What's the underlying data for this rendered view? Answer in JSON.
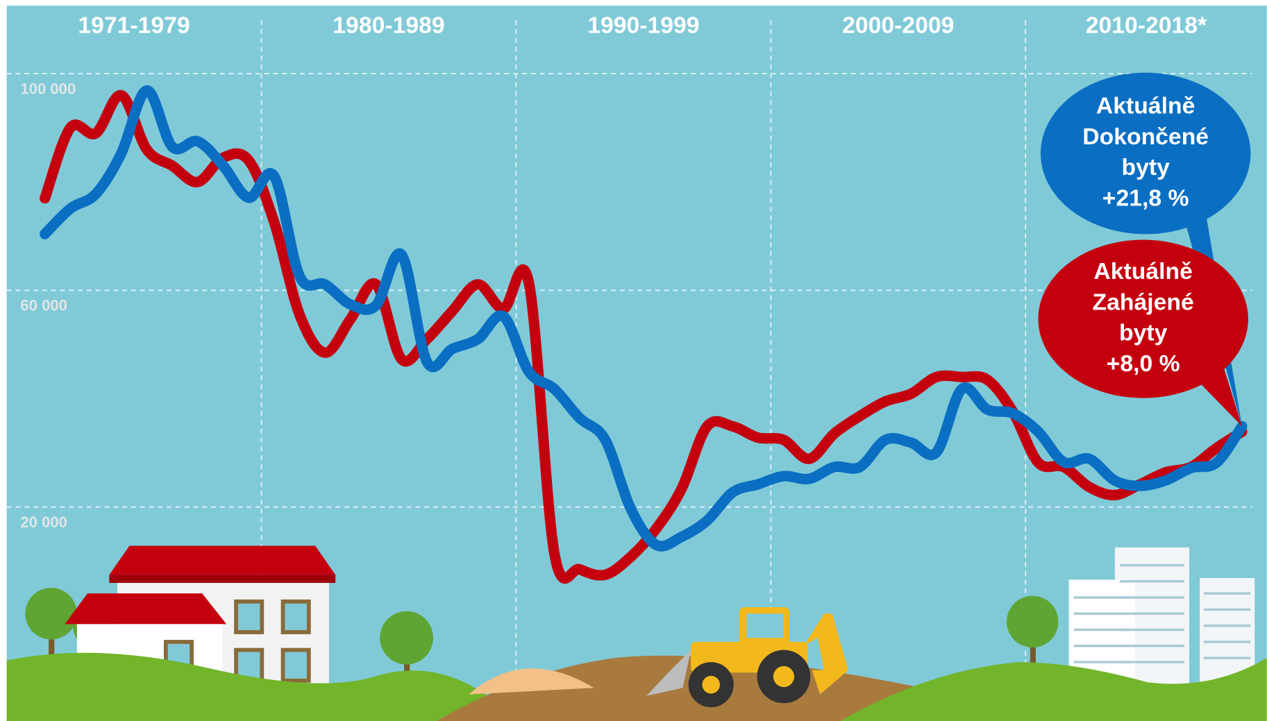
{
  "chart_data": {
    "type": "line",
    "decades": [
      "1971-1979",
      "1980-1989",
      "1990-1999",
      "2000-2009",
      "2010-2018*"
    ],
    "x": [
      1971,
      1972,
      1973,
      1974,
      1975,
      1976,
      1977,
      1978,
      1979,
      1980,
      1981,
      1982,
      1983,
      1984,
      1985,
      1986,
      1987,
      1988,
      1989,
      1990,
      1991,
      1992,
      1993,
      1994,
      1995,
      1996,
      1997,
      1998,
      1999,
      2000,
      2001,
      2002,
      2003,
      2004,
      2005,
      2006,
      2007,
      2008,
      2009,
      2010,
      2011,
      2012,
      2013,
      2014,
      2015,
      2016,
      2017,
      2018
    ],
    "series": [
      {
        "color": "#c4000f",
        "values": [
          77000,
          90000,
          89000,
          96000,
          86000,
          83000,
          80000,
          84500,
          84000,
          72600,
          55500,
          48500,
          54700,
          61100,
          47300,
          51000,
          56200,
          61100,
          56600,
          61400,
          11500,
          8500,
          7500,
          10800,
          16000,
          23400,
          34900,
          34900,
          32800,
          32400,
          28900,
          33600,
          36800,
          39500,
          40900,
          44000,
          44000,
          43500,
          37600,
          28200,
          27400,
          23700,
          22200,
          24200,
          26400,
          27400,
          30900,
          33900
        ]
      },
      {
        "color": "#0a6fc2",
        "values": [
          70400,
          75100,
          77800,
          85300,
          96900,
          86500,
          87500,
          83000,
          77100,
          81100,
          62600,
          61100,
          57400,
          57200,
          66600,
          46800,
          49200,
          51000,
          55200,
          45000,
          41800,
          36400,
          32400,
          19700,
          13000,
          14500,
          17500,
          22700,
          24200,
          25700,
          25200,
          27400,
          27400,
          32400,
          31900,
          30100,
          41800,
          38000,
          37300,
          33900,
          28300,
          28900,
          24900,
          23900,
          24900,
          27200,
          28200,
          34900
        ]
      }
    ],
    "xlim": [
      1969.5,
      2018.4
    ],
    "xticks": [
      1979.5,
      1989.5,
      1999.5,
      2009.5
    ],
    "ylim": [
      -19500,
      113600
    ],
    "yticks": [
      {
        "value": 100000,
        "label": "100 000"
      },
      {
        "value": 60000,
        "label": "60 000"
      },
      {
        "value": 20000,
        "label": "20 000"
      }
    ],
    "grid": true,
    "annotations": [
      {
        "lines": [
          "Aktuálně",
          "Dokončené",
          "byty",
          "+21,8 %"
        ],
        "color": "#0a6fc2"
      },
      {
        "lines": [
          "Aktuálně",
          "Zahájené",
          "byty",
          "+8,0 %"
        ],
        "color": "#c4000f"
      }
    ]
  }
}
